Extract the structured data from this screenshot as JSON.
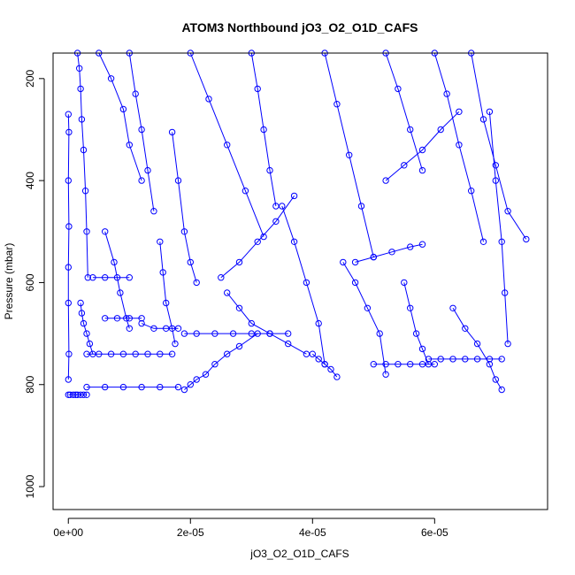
{
  "chart_data": {
    "type": "scatter",
    "title": "ATOM3 Northbound jO3_O2_O1D_CAFS",
    "xlabel": "jO3_O2_O1D_CAFS",
    "ylabel": "Pressure (mbar)",
    "xlim": [
      -2.5e-06,
      7.85e-05
    ],
    "ylim": [
      1045,
      150
    ],
    "y_reversed": true,
    "x_ticks": [
      0,
      2e-05,
      4e-05,
      6e-05
    ],
    "x_tick_labels": [
      "0e+00",
      "2e-05",
      "4e-05",
      "6e-05"
    ],
    "y_ticks": [
      200,
      400,
      600,
      800,
      1000
    ],
    "y_tick_labels": [
      "200",
      "400",
      "600",
      "800",
      "1000"
    ],
    "grid": false,
    "color": "#0000ff",
    "marker": "open-circle",
    "series": [
      {
        "x": [
          0.0,
          3e-07,
          8e-07,
          1.2e-06,
          1.5e-06,
          2e-06,
          2.5e-06,
          3e-06
        ],
        "y": [
          820,
          820,
          820,
          820,
          820,
          820,
          820,
          820
        ]
      },
      {
        "x": [
          0.0,
          1e-07,
          0.0,
          1e-07,
          0.0,
          0.0,
          1e-07,
          0.0
        ],
        "y": [
          270,
          305,
          400,
          490,
          570,
          640,
          740,
          790
        ]
      },
      {
        "x": [
          1.5e-06,
          1.8e-06,
          2e-06,
          2.2e-06,
          2.5e-06,
          2.8e-06,
          3e-06,
          3.2e-06
        ],
        "y": [
          150,
          180,
          220,
          280,
          340,
          420,
          500,
          590
        ]
      },
      {
        "x": [
          2e-06,
          2.2e-06,
          2.5e-06,
          3e-06,
          3.5e-06,
          4e-06
        ],
        "y": [
          640,
          660,
          680,
          700,
          720,
          740
        ]
      },
      {
        "x": [
          3e-06,
          5e-06,
          7e-06,
          9e-06,
          1.1e-05,
          1.3e-05,
          1.5e-05,
          1.7e-05
        ],
        "y": [
          740,
          740,
          740,
          740,
          740,
          740,
          740,
          740
        ]
      },
      {
        "x": [
          3e-06,
          6e-06,
          9e-06,
          1.2e-05,
          1.5e-05,
          1.8e-05
        ],
        "y": [
          805,
          805,
          805,
          805,
          805,
          805
        ]
      },
      {
        "x": [
          5e-06,
          7e-06,
          9e-06,
          1e-05,
          1.2e-05
        ],
        "y": [
          150,
          200,
          260,
          330,
          400
        ]
      },
      {
        "x": [
          6e-06,
          7.5e-06,
          8.5e-06,
          9.5e-06,
          1e-05
        ],
        "y": [
          500,
          560,
          620,
          670,
          690
        ]
      },
      {
        "x": [
          1e-05,
          1.1e-05,
          1.2e-05,
          1.3e-05,
          1.4e-05
        ],
        "y": [
          150,
          230,
          300,
          380,
          460
        ]
      },
      {
        "x": [
          1.5e-05,
          1.55e-05,
          1.6e-05,
          1.7e-05,
          1.75e-05
        ],
        "y": [
          520,
          580,
          640,
          690,
          720
        ]
      },
      {
        "x": [
          1.7e-05,
          1.8e-05,
          1.9e-05,
          2e-05,
          2.1e-05
        ],
        "y": [
          305,
          400,
          500,
          560,
          600
        ]
      },
      {
        "x": [
          1.9e-05,
          2e-05,
          2.1e-05,
          2.25e-05,
          2.4e-05,
          2.6e-05,
          2.8e-05,
          3.1e-05
        ],
        "y": [
          810,
          800,
          790,
          780,
          760,
          740,
          725,
          700
        ]
      },
      {
        "x": [
          1.9e-05,
          2.1e-05,
          2.4e-05,
          2.7e-05,
          3e-05,
          3.3e-05,
          3.6e-05
        ],
        "y": [
          700,
          700,
          700,
          700,
          700,
          700,
          700
        ]
      },
      {
        "x": [
          2e-05,
          2.3e-05,
          2.6e-05,
          2.9e-05,
          3.2e-05
        ],
        "y": [
          150,
          240,
          330,
          420,
          510
        ]
      },
      {
        "x": [
          2.6e-05,
          2.8e-05,
          3e-05,
          3.3e-05,
          3.6e-05,
          3.9e-05
        ],
        "y": [
          620,
          650,
          680,
          700,
          720,
          740
        ]
      },
      {
        "x": [
          3e-05,
          3.1e-05,
          3.2e-05,
          3.3e-05,
          3.4e-05
        ],
        "y": [
          150,
          220,
          300,
          380,
          450
        ]
      },
      {
        "x": [
          3.5e-05,
          3.7e-05,
          3.9e-05,
          4.1e-05,
          4.2e-05
        ],
        "y": [
          450,
          520,
          600,
          680,
          760
        ]
      },
      {
        "x": [
          4e-05,
          4.1e-05,
          4.2e-05,
          4.3e-05,
          4.4e-05
        ],
        "y": [
          740,
          750,
          760,
          770,
          785
        ]
      },
      {
        "x": [
          4.2e-05,
          4.4e-05,
          4.6e-05,
          4.8e-05,
          5e-05
        ],
        "y": [
          150,
          250,
          350,
          450,
          550
        ]
      },
      {
        "x": [
          4.5e-05,
          4.7e-05,
          4.9e-05,
          5.1e-05,
          5.2e-05
        ],
        "y": [
          560,
          600,
          650,
          700,
          780
        ]
      },
      {
        "x": [
          5e-05,
          5.2e-05,
          5.4e-05,
          5.6e-05,
          5.8e-05,
          6e-05
        ],
        "y": [
          760,
          760,
          760,
          760,
          760,
          760
        ]
      },
      {
        "x": [
          5.2e-05,
          5.4e-05,
          5.6e-05,
          5.8e-05
        ],
        "y": [
          150,
          220,
          300,
          380
        ]
      },
      {
        "x": [
          5.5e-05,
          5.6e-05,
          5.7e-05,
          5.8e-05,
          5.9e-05
        ],
        "y": [
          600,
          650,
          700,
          730,
          760
        ]
      },
      {
        "x": [
          5.9e-05,
          6.1e-05,
          6.3e-05,
          6.5e-05,
          6.7e-05,
          6.9e-05,
          7.1e-05
        ],
        "y": [
          750,
          750,
          750,
          750,
          750,
          750,
          750
        ]
      },
      {
        "x": [
          6e-05,
          6.2e-05,
          6.4e-05,
          6.6e-05,
          6.8e-05
        ],
        "y": [
          150,
          230,
          330,
          420,
          520
        ]
      },
      {
        "x": [
          6.3e-05,
          6.5e-05,
          6.7e-05,
          6.9e-05,
          7e-05,
          7.1e-05
        ],
        "y": [
          650,
          690,
          720,
          760,
          790,
          810
        ]
      },
      {
        "x": [
          6.6e-05,
          6.8e-05,
          7e-05,
          7.2e-05,
          7.5e-05
        ],
        "y": [
          150,
          280,
          370,
          460,
          515
        ]
      },
      {
        "x": [
          6.9e-05,
          7e-05,
          7.1e-05,
          7.15e-05,
          7.2e-05
        ],
        "y": [
          265,
          400,
          520,
          620,
          720
        ]
      },
      {
        "x": [
          6e-06,
          8e-06,
          1e-05,
          1.2e-05
        ],
        "y": [
          670,
          670,
          670,
          670
        ]
      },
      {
        "x": [
          4e-06,
          6e-06,
          8e-06,
          1e-05
        ],
        "y": [
          590,
          590,
          590,
          590
        ]
      },
      {
        "x": [
          1.2e-05,
          1.4e-05,
          1.6e-05,
          1.8e-05
        ],
        "y": [
          680,
          690,
          690,
          690
        ]
      },
      {
        "x": [
          4.7e-05,
          5e-05,
          5.3e-05,
          5.6e-05,
          5.8e-05
        ],
        "y": [
          560,
          550,
          540,
          530,
          525
        ]
      },
      {
        "x": [
          5.2e-05,
          5.5e-05,
          5.8e-05,
          6.1e-05,
          6.4e-05
        ],
        "y": [
          400,
          370,
          340,
          300,
          265
        ]
      },
      {
        "x": [
          2.5e-05,
          2.8e-05,
          3.1e-05,
          3.4e-05,
          3.7e-05
        ],
        "y": [
          590,
          560,
          520,
          480,
          430
        ]
      }
    ]
  }
}
